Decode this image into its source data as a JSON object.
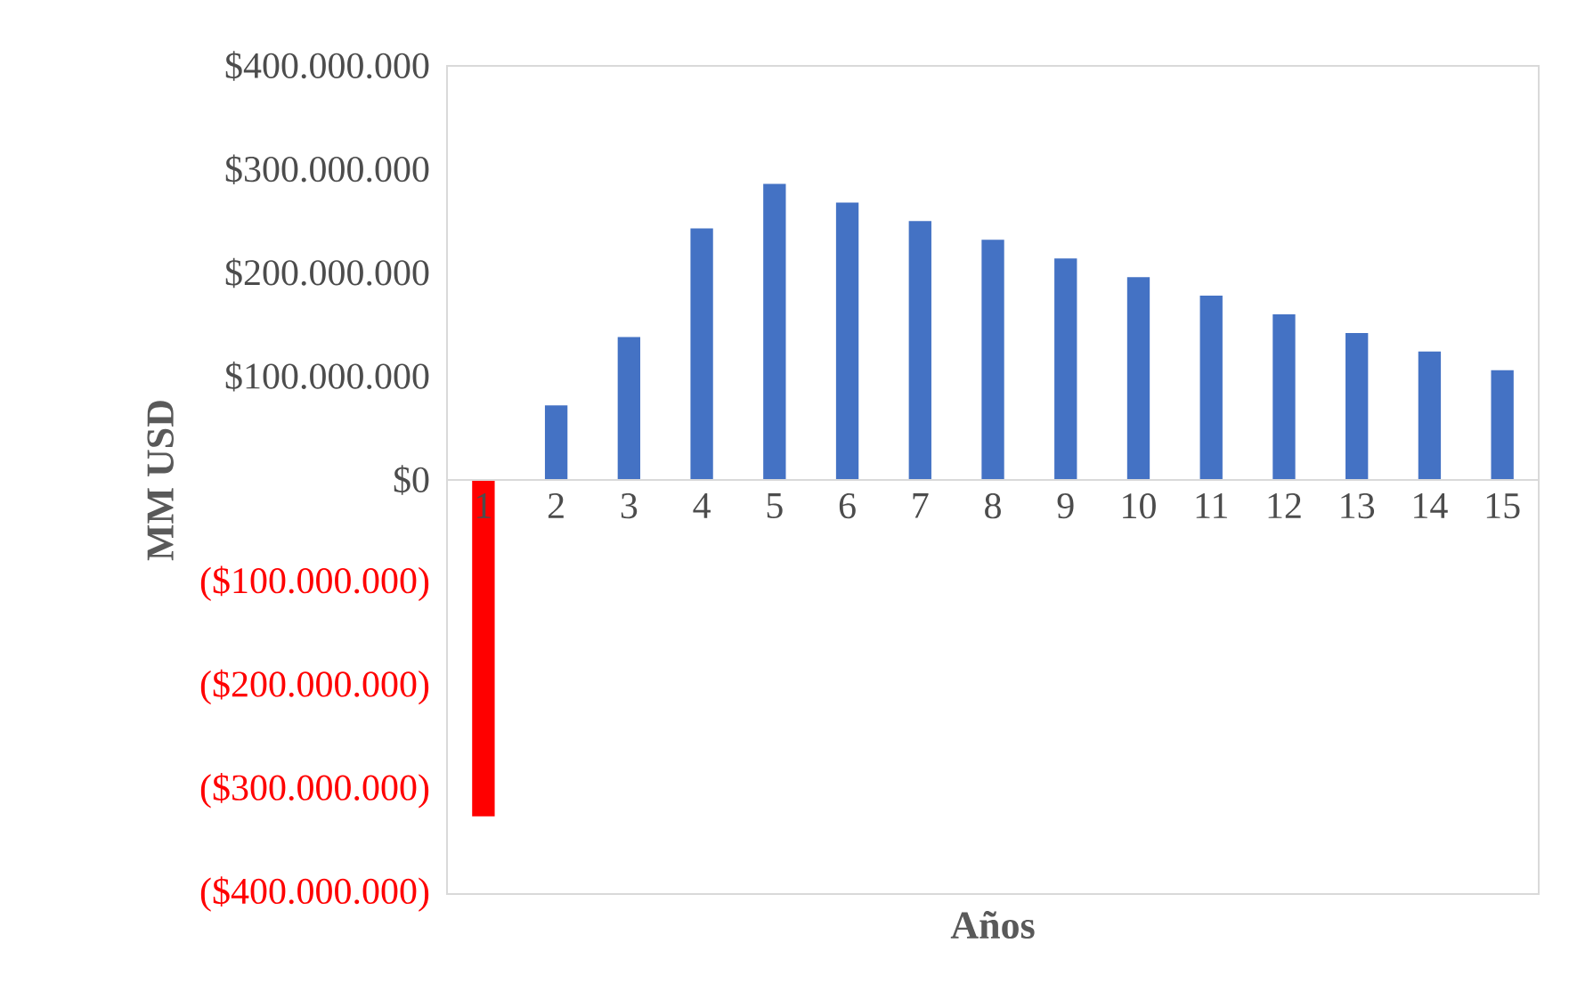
{
  "chart_data": {
    "type": "bar",
    "xlabel": "Años",
    "ylabel": "MM USD",
    "categories": [
      "1",
      "2",
      "3",
      "4",
      "5",
      "6",
      "7",
      "8",
      "9",
      "10",
      "11",
      "12",
      "13",
      "14",
      "15"
    ],
    "values": [
      -325000000,
      72000000,
      138000000,
      243000000,
      286000000,
      268000000,
      250000000,
      232000000,
      214000000,
      196000000,
      178000000,
      160000000,
      142000000,
      124000000,
      106000000
    ],
    "colors": [
      "#ff0000",
      "#4472c4",
      "#4472c4",
      "#4472c4",
      "#4472c4",
      "#4472c4",
      "#4472c4",
      "#4472c4",
      "#4472c4",
      "#4472c4",
      "#4472c4",
      "#4472c4",
      "#4472c4",
      "#4472c4",
      "#4472c4"
    ],
    "ylim": [
      -400000000,
      400000000
    ],
    "yticks": [
      {
        "value": 400000000,
        "label": "$400.000.000"
      },
      {
        "value": 300000000,
        "label": "$300.000.000"
      },
      {
        "value": 200000000,
        "label": "$200.000.000"
      },
      {
        "value": 100000000,
        "label": "$100.000.000"
      },
      {
        "value": 0,
        "label": "$0"
      },
      {
        "value": -100000000,
        "label": "($100.000.000)"
      },
      {
        "value": -200000000,
        "label": "($200.000.000)"
      },
      {
        "value": -300000000,
        "label": "($300.000.000)"
      },
      {
        "value": -400000000,
        "label": "($400.000.000)"
      }
    ],
    "grid": false
  }
}
